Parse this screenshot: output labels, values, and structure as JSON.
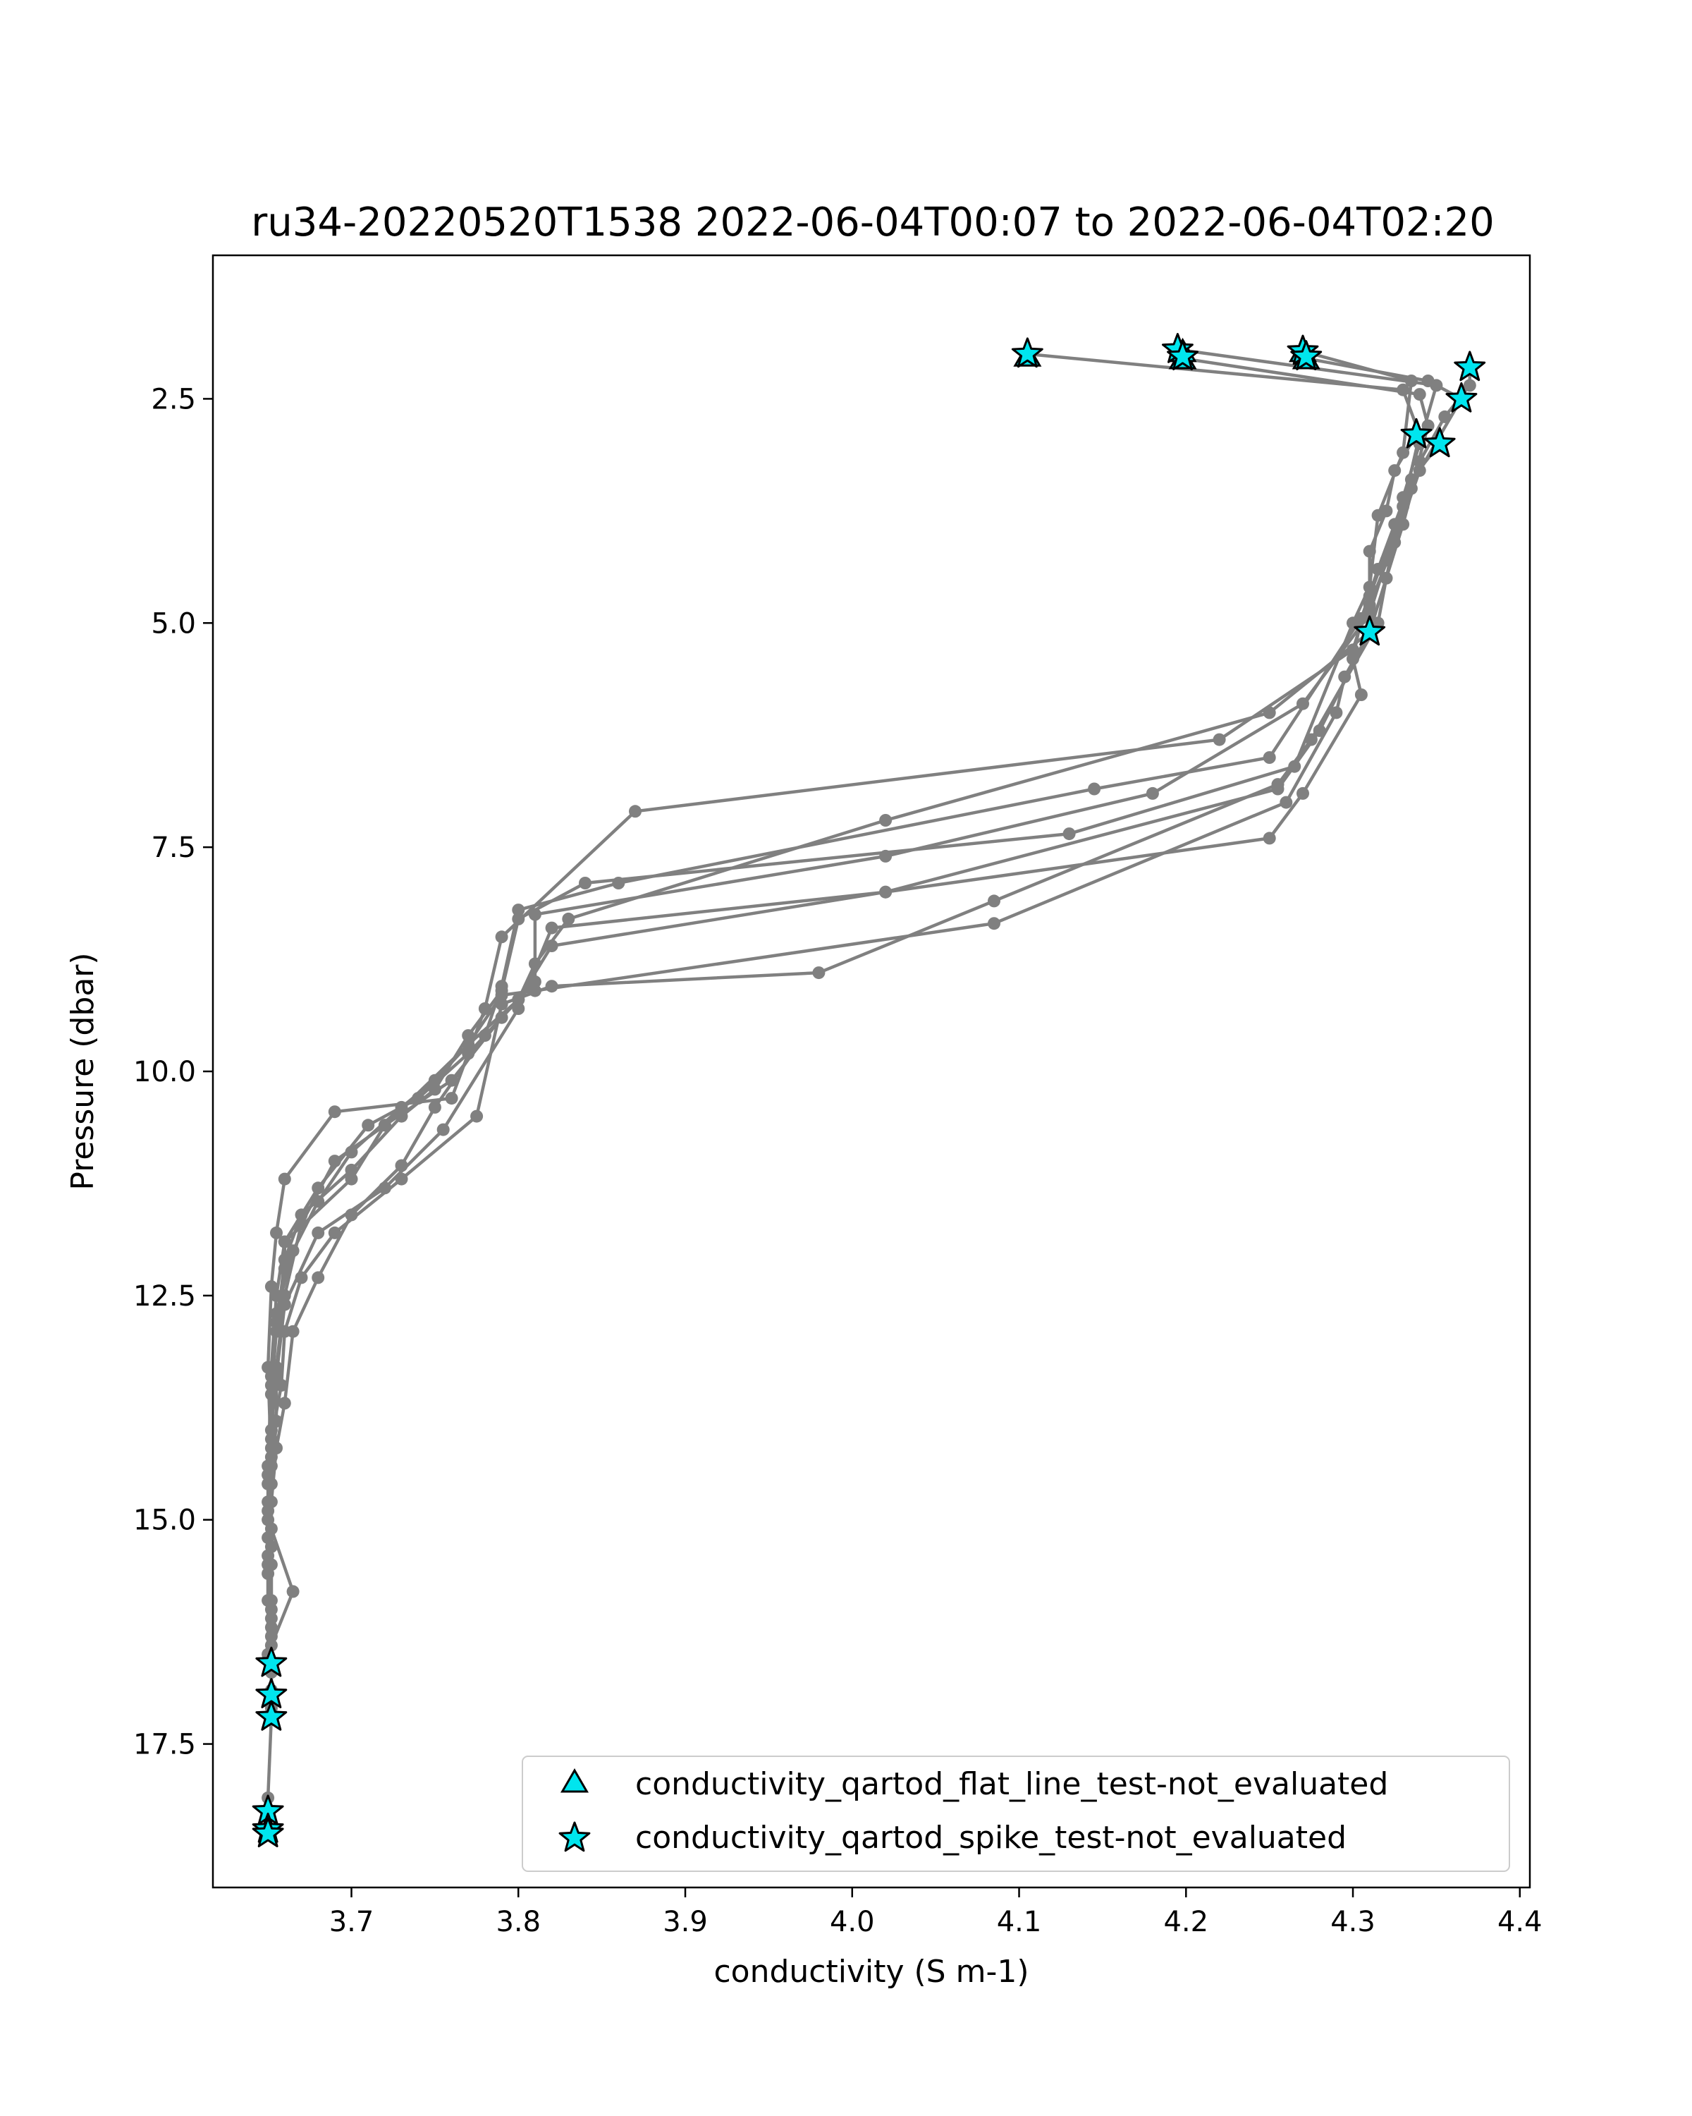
{
  "chart_data": {
    "type": "line",
    "title": "ru34-20220520T1538 2022-06-04T00:07 to 2022-06-04T02:20",
    "xlabel": "conductivity (S m-1)",
    "ylabel": "Pressure (dbar)",
    "xlim": [
      3.617,
      4.406
    ],
    "ylim": [
      19.1,
      0.9
    ],
    "y_inverted": true,
    "grid": false,
    "xticks": [
      3.7,
      3.8,
      3.9,
      4.0,
      4.1,
      4.2,
      4.3,
      4.4
    ],
    "xtick_labels": [
      "3.7",
      "3.8",
      "3.9",
      "4.0",
      "4.1",
      "4.2",
      "4.3",
      "4.4"
    ],
    "yticks": [
      2.5,
      5.0,
      7.5,
      10.0,
      12.5,
      15.0,
      17.5
    ],
    "ytick_labels": [
      "2.5",
      "5.0",
      "7.5",
      "10.0",
      "12.5",
      "15.0",
      "17.5"
    ],
    "legend_position": "lower-right",
    "colors": {
      "line": "#808080",
      "marker_fill": "#00e5ee",
      "marker_edge": "#000000"
    },
    "series": [
      {
        "values": [
          [
            4.105,
            2.0
          ],
          [
            4.33,
            2.4
          ],
          [
            4.34,
            2.9
          ],
          [
            4.33,
            3.7
          ],
          [
            4.31,
            4.7
          ],
          [
            4.3,
            5.3
          ],
          [
            4.22,
            6.3
          ],
          [
            3.87,
            7.1
          ],
          [
            3.79,
            8.5
          ],
          [
            3.78,
            9.3
          ],
          [
            3.76,
            10.3
          ],
          [
            3.69,
            10.45
          ],
          [
            3.66,
            11.2
          ],
          [
            3.655,
            11.8
          ],
          [
            3.652,
            12.4
          ],
          [
            3.65,
            13.3
          ],
          [
            3.652,
            14.4
          ],
          [
            3.65,
            15.5
          ],
          [
            3.652,
            16.2
          ],
          [
            3.652,
            16.7
          ],
          [
            3.652,
            17.1
          ],
          [
            3.652,
            17.2
          ],
          [
            3.65,
            18.1
          ],
          [
            3.65,
            18.3
          ],
          [
            3.65,
            18.5
          ]
        ]
      },
      {
        "values": [
          [
            4.195,
            1.95
          ],
          [
            4.35,
            2.35
          ],
          [
            4.34,
            3.0
          ],
          [
            4.33,
            3.6
          ],
          [
            4.32,
            4.5
          ],
          [
            4.31,
            5.1
          ],
          [
            4.25,
            6.0
          ],
          [
            4.02,
            7.2
          ],
          [
            3.83,
            8.3
          ],
          [
            3.81,
            8.8
          ],
          [
            3.8,
            9.2
          ],
          [
            3.77,
            9.8
          ],
          [
            3.74,
            10.3
          ],
          [
            3.71,
            10.6
          ],
          [
            3.68,
            11.3
          ],
          [
            3.66,
            11.9
          ],
          [
            3.66,
            12.2
          ],
          [
            3.655,
            12.8
          ],
          [
            3.652,
            13.5
          ],
          [
            3.652,
            14.2
          ],
          [
            3.65,
            14.9
          ],
          [
            3.65,
            15.2
          ],
          [
            3.65,
            15.9
          ],
          [
            3.652,
            16.3
          ]
        ]
      },
      {
        "values": [
          [
            4.198,
            2.05
          ],
          [
            4.34,
            2.45
          ],
          [
            4.345,
            2.8
          ],
          [
            4.335,
            3.5
          ],
          [
            4.32,
            4.3
          ],
          [
            4.31,
            4.9
          ],
          [
            4.27,
            5.9
          ],
          [
            4.18,
            6.9
          ],
          [
            4.02,
            7.6
          ],
          [
            3.81,
            8.25
          ],
          [
            3.81,
            9.0
          ],
          [
            3.79,
            9.4
          ],
          [
            3.76,
            10.1
          ],
          [
            3.72,
            10.6
          ],
          [
            3.69,
            11.0
          ],
          [
            3.67,
            11.7
          ],
          [
            3.66,
            12.5
          ],
          [
            3.655,
            13.3
          ],
          [
            3.655,
            13.9
          ],
          [
            3.652,
            14.6
          ],
          [
            3.652,
            15.1
          ],
          [
            3.665,
            15.8
          ],
          [
            3.652,
            16.4
          ],
          [
            3.652,
            16.9
          ]
        ]
      },
      {
        "values": [
          [
            4.27,
            1.97
          ],
          [
            4.335,
            2.3
          ],
          [
            4.33,
            3.1
          ],
          [
            4.315,
            3.8
          ],
          [
            4.31,
            4.6
          ],
          [
            4.3,
            5.0
          ],
          [
            4.265,
            6.6
          ],
          [
            4.13,
            7.35
          ],
          [
            3.84,
            7.9
          ],
          [
            3.8,
            8.3
          ],
          [
            3.79,
            9.1
          ],
          [
            3.77,
            9.6
          ],
          [
            3.75,
            10.2
          ],
          [
            3.73,
            10.5
          ],
          [
            3.7,
            11.1
          ],
          [
            3.67,
            11.6
          ],
          [
            3.66,
            12.1
          ],
          [
            3.655,
            12.9
          ],
          [
            3.652,
            13.6
          ],
          [
            3.652,
            14.3
          ],
          [
            3.65,
            15.0
          ]
        ]
      },
      {
        "values": [
          [
            4.272,
            2.05
          ],
          [
            4.345,
            2.3
          ],
          [
            4.365,
            2.5
          ],
          [
            4.34,
            3.3
          ],
          [
            4.325,
            4.1
          ],
          [
            4.31,
            4.8
          ],
          [
            4.25,
            6.5
          ],
          [
            4.145,
            6.85
          ],
          [
            3.86,
            7.9
          ],
          [
            3.8,
            8.2
          ],
          [
            3.79,
            9.05
          ],
          [
            3.78,
            9.6
          ],
          [
            3.75,
            10.4
          ],
          [
            3.73,
            11.05
          ],
          [
            3.7,
            11.6
          ],
          [
            3.68,
            12.3
          ],
          [
            3.665,
            12.9
          ],
          [
            3.66,
            13.7
          ],
          [
            3.655,
            14.2
          ],
          [
            3.652,
            14.8
          ],
          [
            3.652,
            15.5
          ],
          [
            3.652,
            16.1
          ],
          [
            3.652,
            16.7
          ]
        ]
      },
      {
        "values": [
          [
            4.37,
            2.15
          ],
          [
            4.37,
            2.35
          ],
          [
            4.355,
            2.7
          ],
          [
            4.34,
            3.2
          ],
          [
            4.33,
            3.9
          ],
          [
            4.32,
            4.5
          ],
          [
            4.315,
            5.0
          ],
          [
            4.275,
            6.3
          ],
          [
            4.255,
            6.8
          ],
          [
            4.085,
            8.1
          ],
          [
            3.98,
            8.9
          ],
          [
            3.82,
            9.05
          ],
          [
            3.79,
            9.25
          ],
          [
            3.775,
            10.5
          ],
          [
            3.73,
            11.2
          ],
          [
            3.69,
            11.8
          ],
          [
            3.67,
            12.3
          ],
          [
            3.66,
            12.9
          ],
          [
            3.658,
            13.5
          ],
          [
            3.652,
            14.1
          ],
          [
            3.65,
            14.8
          ],
          [
            3.65,
            15.6
          ],
          [
            3.65,
            16.5
          ]
        ]
      },
      {
        "values": [
          [
            4.338,
            2.9
          ],
          [
            4.325,
            3.3
          ],
          [
            4.32,
            3.75
          ],
          [
            4.31,
            4.2
          ],
          [
            4.31,
            4.85
          ],
          [
            4.31,
            5.1
          ],
          [
            4.28,
            6.2
          ],
          [
            4.255,
            6.85
          ],
          [
            4.02,
            8.0
          ],
          [
            3.82,
            8.4
          ],
          [
            3.8,
            9.3
          ],
          [
            3.755,
            10.65
          ],
          [
            3.72,
            11.3
          ],
          [
            3.68,
            11.8
          ],
          [
            3.66,
            12.6
          ],
          [
            3.655,
            13.4
          ],
          [
            3.65,
            14.4
          ],
          [
            3.652,
            15.3
          ],
          [
            3.652,
            15.9
          ]
        ]
      },
      {
        "values": [
          [
            4.31,
            5.1
          ],
          [
            4.295,
            5.6
          ],
          [
            4.29,
            6.0
          ],
          [
            4.26,
            7.0
          ],
          [
            4.085,
            8.35
          ],
          [
            3.81,
            9.1
          ],
          [
            3.79,
            9.15
          ],
          [
            3.77,
            9.7
          ],
          [
            3.75,
            10.1
          ],
          [
            3.73,
            10.4
          ],
          [
            3.7,
            10.9
          ],
          [
            3.68,
            11.45
          ],
          [
            3.665,
            12.0
          ],
          [
            3.655,
            12.7
          ],
          [
            3.652,
            13.4
          ],
          [
            3.652,
            14.0
          ],
          [
            3.65,
            14.6
          ],
          [
            3.65,
            15.4
          ],
          [
            3.652,
            16.0
          ]
        ]
      },
      {
        "values": [
          [
            4.352,
            3.0
          ],
          [
            4.335,
            3.4
          ],
          [
            4.325,
            3.9
          ],
          [
            4.315,
            4.4
          ],
          [
            4.305,
            4.95
          ],
          [
            4.3,
            5.4
          ],
          [
            4.305,
            5.8
          ],
          [
            4.27,
            6.9
          ],
          [
            4.25,
            7.4
          ],
          [
            4.02,
            8.0
          ],
          [
            3.82,
            8.6
          ],
          [
            3.8,
            9.2
          ],
          [
            3.77,
            9.7
          ],
          [
            3.72,
            10.6
          ],
          [
            3.7,
            11.2
          ],
          [
            3.66,
            11.9
          ],
          [
            3.655,
            12.5
          ],
          [
            3.652,
            13.3
          ],
          [
            3.65,
            14.5
          ]
        ]
      }
    ],
    "flat_line_not_evaluated": [
      [
        4.105,
        2.05
      ],
      [
        4.198,
        2.08
      ],
      [
        4.272,
        2.08
      ],
      [
        4.198,
        2.0
      ],
      [
        4.27,
        2.0
      ]
    ],
    "spike_not_evaluated": [
      [
        4.105,
        2.0
      ],
      [
        4.195,
        1.95
      ],
      [
        4.27,
        1.97
      ],
      [
        4.198,
        2.03
      ],
      [
        4.272,
        2.03
      ],
      [
        4.37,
        2.15
      ],
      [
        4.365,
        2.5
      ],
      [
        4.338,
        2.9
      ],
      [
        4.352,
        3.0
      ],
      [
        4.31,
        5.1
      ],
      [
        3.652,
        16.6
      ],
      [
        3.652,
        16.95
      ],
      [
        3.652,
        17.2
      ],
      [
        3.65,
        18.25
      ],
      [
        3.65,
        18.45
      ],
      [
        3.65,
        18.5
      ]
    ],
    "legend": [
      {
        "label": "conductivity_qartod_flat_line_test-not_evaluated",
        "marker": "triangle"
      },
      {
        "label": "conductivity_qartod_spike_test-not_evaluated",
        "marker": "star"
      }
    ]
  }
}
